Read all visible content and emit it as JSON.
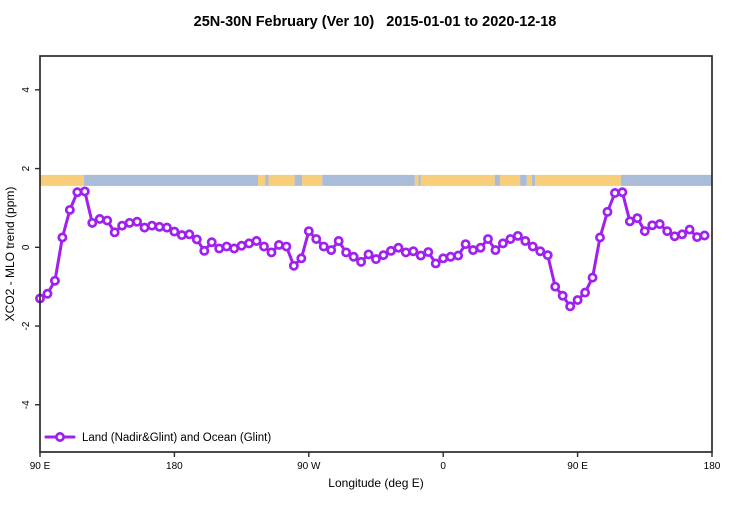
{
  "title": "25N-30N February (Ver 10)   2015-01-01 to 2020-12-18",
  "legend": {
    "label": "Land (Nadir&Glint) and Ocean (Glint)"
  },
  "colors": {
    "series": "#A020F0",
    "marker_fill": "#ffffff",
    "land": "#F8CE7B",
    "ocean": "#A9BCD8",
    "axis": "#2b2b2b"
  },
  "chart_data": {
    "type": "line",
    "title": "25N-30N February (Ver 10)  2015-01-01 to 2020-12-18",
    "xlabel": "Longitude (deg E)",
    "ylabel": "XCO2 - MLO trend (ppm)",
    "xlim": [
      90,
      540
    ],
    "ylim": [
      -5.2,
      4.86
    ],
    "grid": false,
    "legend_position": "bottom-left",
    "x_ticks": [
      {
        "x": 90,
        "label": "90 E"
      },
      {
        "x": 180,
        "label": "180"
      },
      {
        "x": 270,
        "label": "90 W"
      },
      {
        "x": 360,
        "label": "0"
      },
      {
        "x": 450,
        "label": "90 E"
      },
      {
        "x": 540,
        "label": "180"
      }
    ],
    "y_ticks": [
      4,
      2,
      0,
      -2,
      -4
    ],
    "series": [
      {
        "name": "Land (Nadir&Glint) and Ocean (Glint)",
        "color": "#A020F0",
        "marker": "open-circle",
        "x": [
          90,
          95,
          100,
          105,
          110,
          115,
          120,
          125,
          130,
          135,
          140,
          145,
          150,
          155,
          160,
          165,
          170,
          175,
          180,
          185,
          190,
          195,
          200,
          205,
          210,
          215,
          220,
          225,
          230,
          235,
          240,
          245,
          250,
          255,
          260,
          265,
          270,
          275,
          280,
          285,
          290,
          295,
          300,
          305,
          310,
          315,
          320,
          325,
          330,
          335,
          340,
          345,
          350,
          355,
          360,
          365,
          370,
          375,
          380,
          385,
          390,
          395,
          400,
          405,
          410,
          415,
          420,
          425,
          430,
          435,
          440,
          445,
          450,
          455,
          460,
          465,
          470,
          475,
          480,
          485,
          490,
          495,
          500,
          505,
          510,
          515,
          520,
          525,
          530,
          535
        ],
        "y": [
          -1.3,
          -1.18,
          -0.85,
          0.25,
          0.95,
          1.4,
          1.42,
          0.62,
          0.72,
          0.68,
          0.38,
          0.55,
          0.62,
          0.65,
          0.5,
          0.55,
          0.52,
          0.5,
          0.4,
          0.31,
          0.33,
          0.2,
          -0.09,
          0.13,
          -0.03,
          0.02,
          -0.03,
          0.04,
          0.1,
          0.16,
          0.02,
          -0.13,
          0.06,
          0.02,
          -0.47,
          -0.28,
          0.41,
          0.21,
          0.02,
          -0.07,
          0.16,
          -0.13,
          -0.24,
          -0.37,
          -0.18,
          -0.3,
          -0.2,
          -0.09,
          -0.01,
          -0.13,
          -0.1,
          -0.21,
          -0.12,
          -0.41,
          -0.28,
          -0.24,
          -0.21,
          0.08,
          -0.07,
          -0.01,
          0.21,
          -0.07,
          0.1,
          0.21,
          0.29,
          0.16,
          0.02,
          -0.1,
          -0.2,
          -1.0,
          -1.23,
          -1.5,
          -1.34,
          -1.15,
          -0.77,
          0.25,
          0.9,
          1.38,
          1.4,
          0.66,
          0.74,
          0.41,
          0.56,
          0.59,
          0.41,
          0.28,
          0.33,
          0.45,
          0.26,
          0.3
        ]
      }
    ],
    "map_strip": {
      "description": "land/ocean band along 25N-30N",
      "y_top": 1.84,
      "y_bottom": 1.56,
      "segments": [
        {
          "from": 90,
          "to": 119.5,
          "type": "land"
        },
        {
          "from": 119.5,
          "to": 236,
          "type": "ocean"
        },
        {
          "from": 236,
          "to": 241,
          "type": "land"
        },
        {
          "from": 241,
          "to": 243,
          "type": "ocean"
        },
        {
          "from": 243,
          "to": 260.5,
          "type": "land"
        },
        {
          "from": 260.5,
          "to": 265.5,
          "type": "ocean"
        },
        {
          "from": 265.5,
          "to": 279,
          "type": "land"
        },
        {
          "from": 279,
          "to": 341,
          "type": "ocean"
        },
        {
          "from": 341,
          "to": 343.5,
          "type": "land"
        },
        {
          "from": 343.5,
          "to": 345,
          "type": "ocean"
        },
        {
          "from": 345,
          "to": 394.5,
          "type": "land"
        },
        {
          "from": 394.5,
          "to": 398,
          "type": "ocean"
        },
        {
          "from": 398,
          "to": 411.5,
          "type": "land"
        },
        {
          "from": 411.5,
          "to": 416,
          "type": "ocean"
        },
        {
          "from": 416,
          "to": 419.5,
          "type": "land"
        },
        {
          "from": 419.5,
          "to": 421.5,
          "type": "ocean"
        },
        {
          "from": 421.5,
          "to": 479,
          "type": "land"
        },
        {
          "from": 479,
          "to": 540,
          "type": "ocean"
        }
      ]
    }
  }
}
